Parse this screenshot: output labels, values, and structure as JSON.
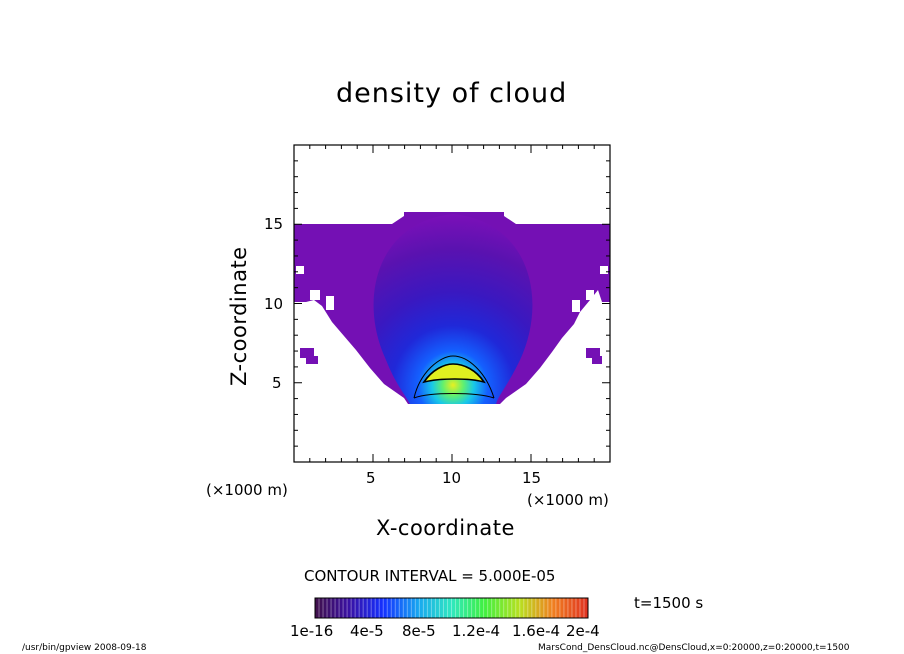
{
  "chart_data": {
    "type": "heatmap",
    "title": "density of cloud",
    "xlabel": "X-coordinate",
    "ylabel": "Z-coordinate",
    "x_unit": "(×1000 m)",
    "y_unit": "(×1000 m)",
    "xlim": [
      0,
      20
    ],
    "ylim": [
      0,
      20
    ],
    "xticks": [
      5,
      10,
      15
    ],
    "yticks": [
      5,
      10,
      15
    ],
    "contour_interval": "CONTOUR INTERVAL = 5.000E-05",
    "time_label": "t=1500 s",
    "colorbar": {
      "tick_labels": [
        "1e-16",
        "4e-5",
        "8e-5",
        "1.2e-4",
        "1.6e-4",
        "2e-4"
      ],
      "range": [
        0,
        0.0002
      ],
      "colormap": [
        "#5a0e8e",
        "#2a10b0",
        "#1450ff",
        "#18c8e8",
        "#30f0a0",
        "#c8f030",
        "#ffd000",
        "#ff4000"
      ]
    },
    "region": {
      "upper_band_z": [
        10,
        15
      ],
      "plume_base_z": 3.8,
      "plume_top_z": 15.5,
      "plume_center_x": 10,
      "peak_density": 0.00017,
      "peak_location": [
        10,
        5.5
      ]
    }
  },
  "footer": {
    "left": "/usr/bin/gpview   2008-09-18",
    "right": "MarsCond_DensCloud.nc@DensCloud,x=0:20000,z=0:20000,t=1500"
  },
  "colors": {
    "background": "#ffffff",
    "axis": "#000000",
    "outer_cloud": "#7a10b8",
    "core": "#e8f020"
  }
}
